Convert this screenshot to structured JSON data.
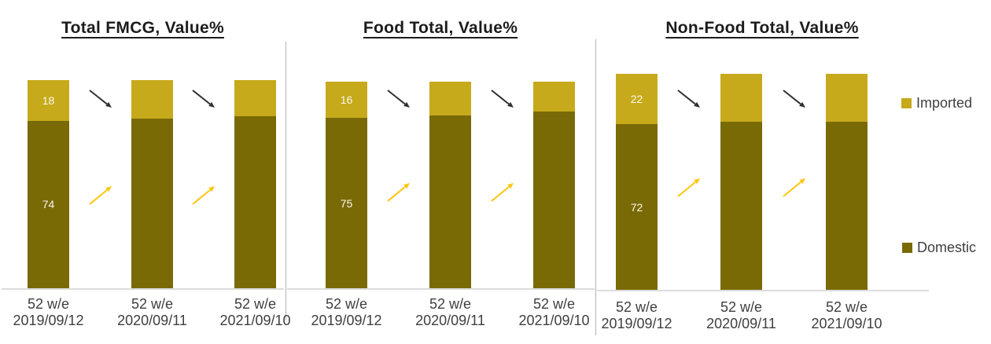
{
  "chart_data": {
    "type": "bar",
    "subtype": "stacked-column, 3 panels, values in percent",
    "unit": "%",
    "category_top_line": "52 w/e",
    "category_dates": [
      "2019/09/12",
      "2020/09/11",
      "2021/09/10"
    ],
    "panels": [
      {
        "title": "Total FMCG, Value%",
        "series": [
          {
            "name": "Domestic",
            "values": [
              74,
              75,
              76
            ],
            "shown_labels": [
              "74",
              "",
              ""
            ]
          },
          {
            "name": "Imported",
            "values": [
              18,
              17,
              16
            ],
            "shown_labels": [
              "18",
              "",
              ""
            ]
          }
        ]
      },
      {
        "title": "Food Total, Value%",
        "series": [
          {
            "name": "Domestic",
            "values": [
              75,
              76,
              78
            ],
            "shown_labels": [
              "75",
              "",
              ""
            ]
          },
          {
            "name": "Imported",
            "values": [
              16,
              15,
              13
            ],
            "shown_labels": [
              "16",
              "",
              ""
            ]
          }
        ]
      },
      {
        "title": "Non-Food Total, Value%",
        "series": [
          {
            "name": "Domestic",
            "values": [
              72,
              73,
              73
            ],
            "shown_labels": [
              "72",
              "",
              ""
            ]
          },
          {
            "name": "Imported",
            "values": [
              22,
              21,
              21
            ],
            "shown_labels": [
              "22",
              "",
              ""
            ]
          }
        ]
      }
    ],
    "series_colors": {
      "Imported": "#c6aa1b",
      "Domestic": "#7a6a06"
    },
    "legend": {
      "position": "right",
      "items": [
        {
          "label": "Imported",
          "color": "#c6aa1b"
        },
        {
          "label": "Domestic",
          "color": "#7a6a06"
        }
      ]
    },
    "trend_arrows": {
      "imported": {
        "direction": "down-right",
        "color": "#303030"
      },
      "domestic": {
        "direction": "up-right",
        "color": "#ffc40e"
      }
    },
    "axis": {
      "baseline_color": "#dcdcdc",
      "divider_color": "#b3b3b3"
    }
  }
}
